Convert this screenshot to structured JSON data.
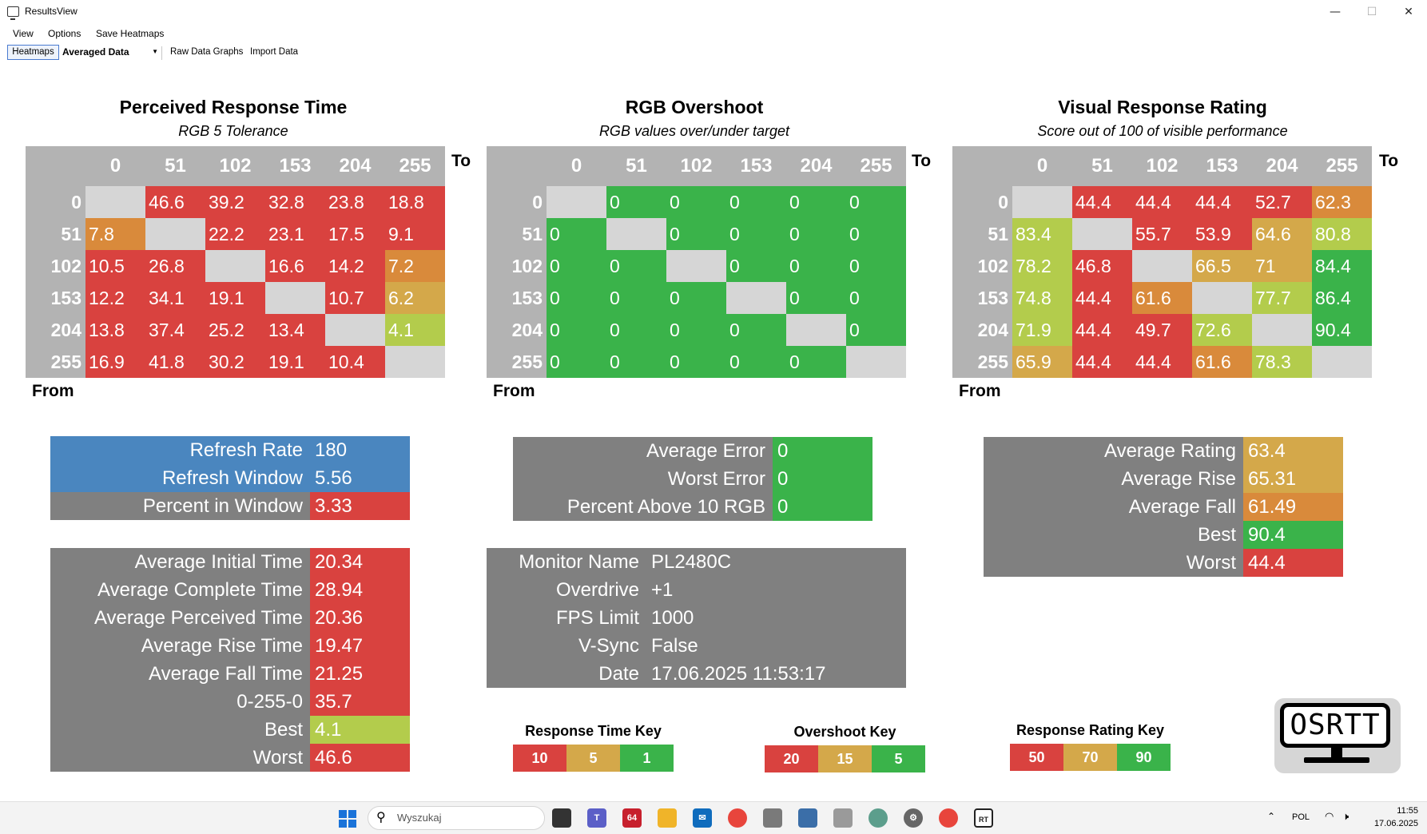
{
  "window": {
    "title": "ResultsView",
    "minimize": "—",
    "maximize": "☐",
    "close": "✕"
  },
  "menu": [
    "View",
    "Options",
    "Save Heatmaps"
  ],
  "toolbar": {
    "heatmaps": "Heatmaps",
    "averaged": "Averaged Data",
    "raw": "Raw Data Graphs",
    "import": "Import Data"
  },
  "colors": {
    "red": "#d9423f",
    "orange": "#d98a3b",
    "yellow": "#d4a84a",
    "lime": "#b3cc4c",
    "green": "#3ab34a",
    "blue": "#4a86bf",
    "grey": "#808080",
    "diag": "#d6d6d6",
    "header": "#b3b3b3"
  },
  "axis": {
    "to": "To",
    "from": "From"
  },
  "heatmaps": [
    {
      "title": "Perceived Response Time",
      "subtitle": "RGB 5 Tolerance",
      "levels": [
        "0",
        "51",
        "102",
        "153",
        "204",
        "255"
      ],
      "rows": [
        [
          null,
          "46.6",
          "39.2",
          "32.8",
          "23.8",
          "18.8"
        ],
        [
          "7.8",
          null,
          "22.2",
          "23.1",
          "17.5",
          "9.1"
        ],
        [
          "10.5",
          "26.8",
          null,
          "16.6",
          "14.2",
          "7.2"
        ],
        [
          "12.2",
          "34.1",
          "19.1",
          null,
          "10.7",
          "6.2"
        ],
        [
          "13.8",
          "37.4",
          "25.2",
          "13.4",
          null,
          "4.1"
        ],
        [
          "16.9",
          "41.8",
          "30.2",
          "19.1",
          "10.4",
          null
        ]
      ],
      "cell_colors": [
        [
          "diag",
          "red",
          "red",
          "red",
          "red",
          "red"
        ],
        [
          "orange",
          "diag",
          "red",
          "red",
          "red",
          "red"
        ],
        [
          "red",
          "red",
          "diag",
          "red",
          "red",
          "orange"
        ],
        [
          "red",
          "red",
          "red",
          "diag",
          "red",
          "yellow"
        ],
        [
          "red",
          "red",
          "red",
          "red",
          "diag",
          "lime"
        ],
        [
          "red",
          "red",
          "red",
          "red",
          "red",
          "diag"
        ]
      ]
    },
    {
      "title": "RGB Overshoot",
      "subtitle": "RGB values over/under target",
      "levels": [
        "0",
        "51",
        "102",
        "153",
        "204",
        "255"
      ],
      "rows": [
        [
          null,
          "0",
          "0",
          "0",
          "0",
          "0"
        ],
        [
          "0",
          null,
          "0",
          "0",
          "0",
          "0"
        ],
        [
          "0",
          "0",
          null,
          "0",
          "0",
          "0"
        ],
        [
          "0",
          "0",
          "0",
          null,
          "0",
          "0"
        ],
        [
          "0",
          "0",
          "0",
          "0",
          null,
          "0"
        ],
        [
          "0",
          "0",
          "0",
          "0",
          "0",
          null
        ]
      ],
      "cell_colors": [
        [
          "diag",
          "green",
          "green",
          "green",
          "green",
          "green"
        ],
        [
          "green",
          "diag",
          "green",
          "green",
          "green",
          "green"
        ],
        [
          "green",
          "green",
          "diag",
          "green",
          "green",
          "green"
        ],
        [
          "green",
          "green",
          "green",
          "diag",
          "green",
          "green"
        ],
        [
          "green",
          "green",
          "green",
          "green",
          "diag",
          "green"
        ],
        [
          "green",
          "green",
          "green",
          "green",
          "green",
          "diag"
        ]
      ]
    },
    {
      "title": "Visual Response Rating",
      "subtitle": "Score out of 100 of visible performance",
      "levels": [
        "0",
        "51",
        "102",
        "153",
        "204",
        "255"
      ],
      "rows": [
        [
          null,
          "44.4",
          "44.4",
          "44.4",
          "52.7",
          "62.3"
        ],
        [
          "83.4",
          null,
          "55.7",
          "53.9",
          "64.6",
          "80.8"
        ],
        [
          "78.2",
          "46.8",
          null,
          "66.5",
          "71",
          "84.4"
        ],
        [
          "74.8",
          "44.4",
          "61.6",
          null,
          "77.7",
          "86.4"
        ],
        [
          "71.9",
          "44.4",
          "49.7",
          "72.6",
          null,
          "90.4"
        ],
        [
          "65.9",
          "44.4",
          "44.4",
          "61.6",
          "78.3",
          null
        ]
      ],
      "cell_colors": [
        [
          "diag",
          "red",
          "red",
          "red",
          "red",
          "orange"
        ],
        [
          "lime",
          "diag",
          "red",
          "red",
          "yellow",
          "lime"
        ],
        [
          "lime",
          "red",
          "diag",
          "yellow",
          "yellow",
          "green"
        ],
        [
          "lime",
          "red",
          "orange",
          "diag",
          "lime",
          "green"
        ],
        [
          "lime",
          "red",
          "red",
          "lime",
          "diag",
          "green"
        ],
        [
          "yellow",
          "red",
          "red",
          "orange",
          "lime",
          "diag"
        ]
      ]
    }
  ],
  "refresh": [
    {
      "label": "Refresh Rate",
      "value": "180",
      "lbl_color": "blue",
      "val_color": "blue"
    },
    {
      "label": "Refresh Window",
      "value": "5.56",
      "lbl_color": "blue",
      "val_color": "blue"
    },
    {
      "label": "Percent in Window",
      "value": "3.33",
      "lbl_color": "grey",
      "val_color": "red"
    }
  ],
  "response_stats": [
    {
      "label": "Average Initial Time",
      "value": "20.34",
      "val_color": "red"
    },
    {
      "label": "Average Complete Time",
      "value": "28.94",
      "val_color": "red"
    },
    {
      "label": "Average Perceived Time",
      "value": "20.36",
      "val_color": "red"
    },
    {
      "label": "Average Rise Time",
      "value": "19.47",
      "val_color": "red"
    },
    {
      "label": "Average Fall Time",
      "value": "21.25",
      "val_color": "red"
    },
    {
      "label": "0-255-0",
      "value": "35.7",
      "val_color": "red"
    },
    {
      "label": "Best",
      "value": "4.1",
      "val_color": "lime"
    },
    {
      "label": "Worst",
      "value": "46.6",
      "val_color": "red"
    }
  ],
  "overshoot_stats": [
    {
      "label": "Average Error",
      "value": "0",
      "val_color": "green"
    },
    {
      "label": "Worst Error",
      "value": "0",
      "val_color": "green"
    },
    {
      "label": "Percent Above 10 RGB",
      "value": "0",
      "val_color": "green"
    }
  ],
  "monitor": [
    {
      "label": "Monitor Name",
      "value": "PL2480C"
    },
    {
      "label": "Overdrive",
      "value": "+1"
    },
    {
      "label": "FPS Limit",
      "value": "1000"
    },
    {
      "label": "V-Sync",
      "value": "False"
    },
    {
      "label": "Date",
      "value": "17.06.2025 11:53:17"
    }
  ],
  "rating_stats": [
    {
      "label": "Average Rating",
      "value": "63.4",
      "val_color": "yellow"
    },
    {
      "label": "Average Rise",
      "value": "65.31",
      "val_color": "yellow"
    },
    {
      "label": "Average Fall",
      "value": "61.49",
      "val_color": "orange"
    },
    {
      "label": "Best",
      "value": "90.4",
      "val_color": "green"
    },
    {
      "label": "Worst",
      "value": "44.4",
      "val_color": "red"
    }
  ],
  "keys": [
    {
      "title": "Response Time Key",
      "values": [
        "10",
        "5",
        "1"
      ]
    },
    {
      "title": "Overshoot Key",
      "values": [
        "20",
        "15",
        "5"
      ]
    },
    {
      "title": "Response Rating Key",
      "values": [
        "50",
        "70",
        "90"
      ]
    }
  ],
  "logo_text": "OSRTT",
  "taskbar": {
    "search_placeholder": "Wyszukaj",
    "badge": "64",
    "language": "POL",
    "time": "11:55",
    "date": "17.06.2025"
  }
}
